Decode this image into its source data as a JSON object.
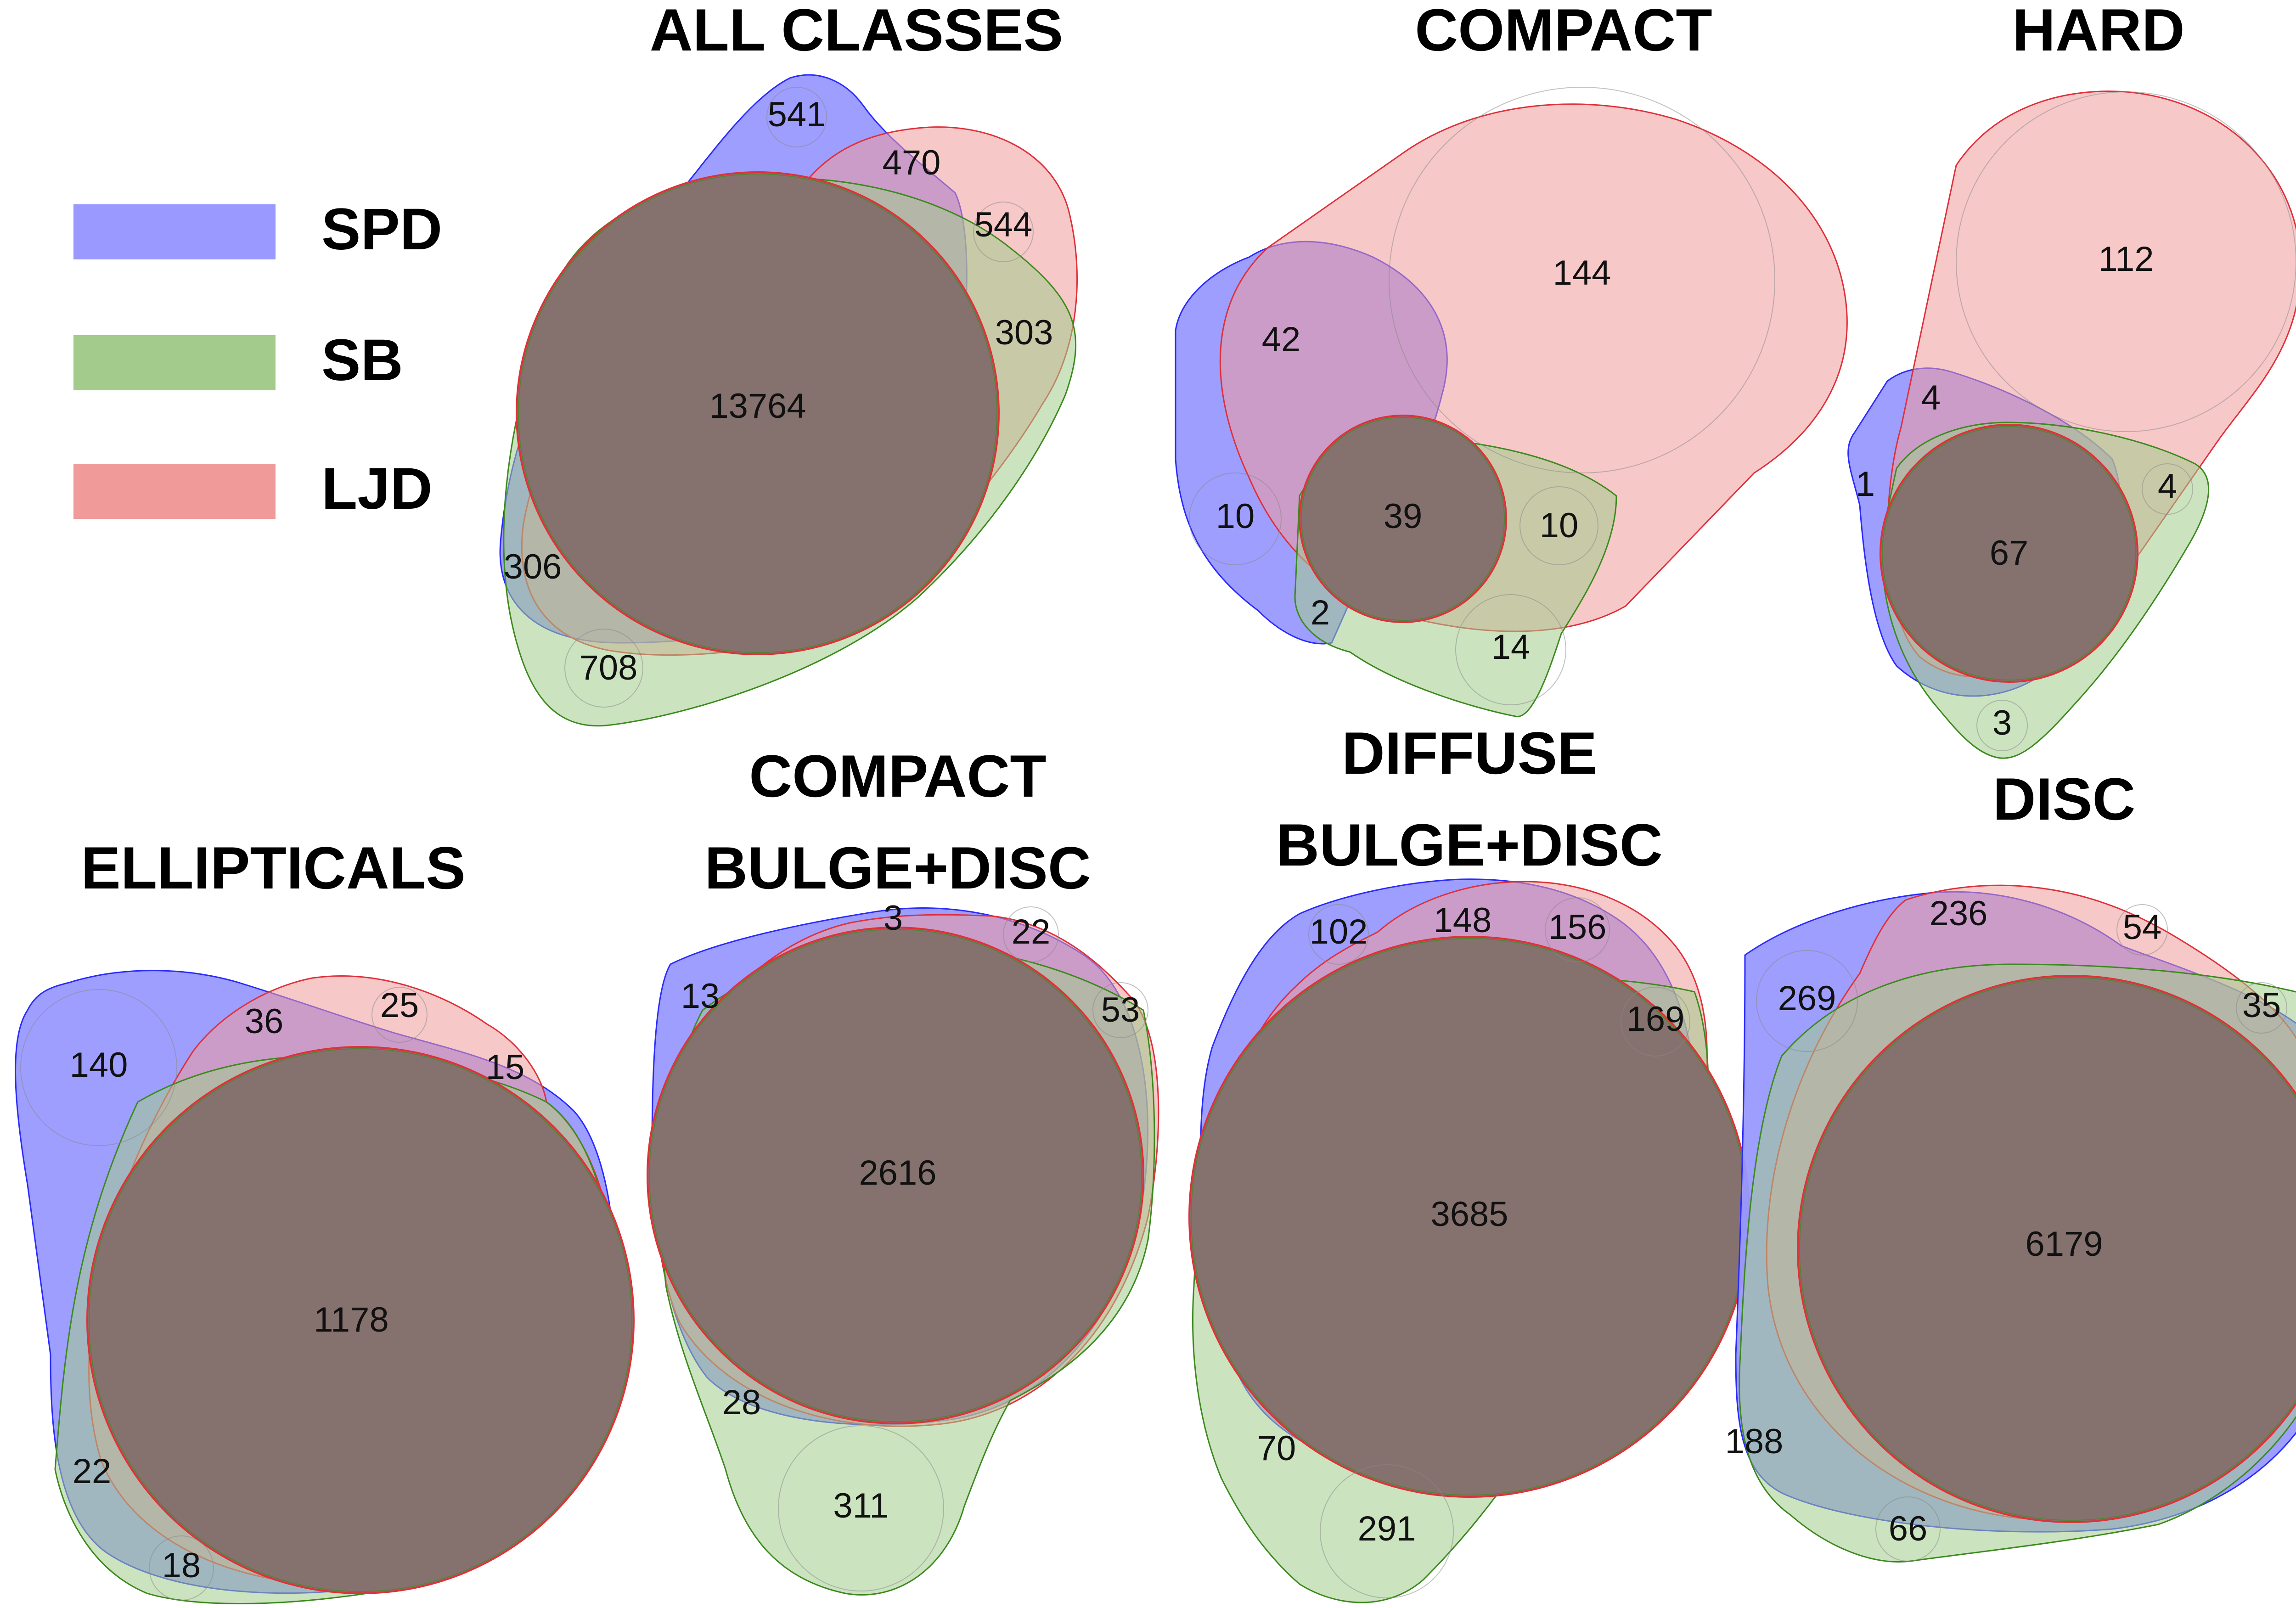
{
  "colors": {
    "SPD": "#9999ff",
    "SB": "#a3cc8c",
    "LJD": "#f09a9a",
    "SPD_stroke": "#2a2aff",
    "SB_stroke": "#3c8a1e",
    "LJD_stroke": "#e0303a",
    "SPD_LJD": "#b565b5",
    "SB_LJD": "#a39356",
    "SPD_SB": "#6683a0",
    "ALL": "#85726e"
  },
  "legend": [
    {
      "key": "SPD",
      "label": "SPD"
    },
    {
      "key": "SB",
      "label": "SB"
    },
    {
      "key": "LJD",
      "label": "LJD"
    }
  ],
  "panels": [
    {
      "id": "all-classes",
      "title_lines": [
        "ALL CLASSES"
      ],
      "values": {
        "spd_only": "541",
        "spd_ljd": "470",
        "ljd_only": "544",
        "sb_ljd": "303",
        "all": "13764",
        "spd_sb": "306",
        "sb_only": "708"
      }
    },
    {
      "id": "compact",
      "title_lines": [
        "COMPACT"
      ],
      "values": {
        "ljd_only": "144",
        "spd_ljd": "42",
        "spd_only": "10",
        "all": "39",
        "sb_ljd": "10",
        "spd_sb": "2",
        "sb_only": "14"
      }
    },
    {
      "id": "hard",
      "title_lines": [
        "HARD"
      ],
      "values": {
        "ljd_only": "112",
        "spd_ljd": "4",
        "spd_only": "1",
        "sb_ljd": "4",
        "all": "67",
        "sb_only": "3"
      }
    },
    {
      "id": "ellipticals",
      "title_lines": [
        "ELLIPTICALS"
      ],
      "values": {
        "spd_only": "140",
        "spd_ljd": "36",
        "ljd_only": "25",
        "sb_ljd": "15",
        "all": "1178",
        "spd_sb": "22",
        "sb_only": "18"
      }
    },
    {
      "id": "compact-bulge-disc",
      "title_lines": [
        "COMPACT",
        "BULGE+DISC"
      ],
      "values": {
        "spd_ljd": "3",
        "ljd_only": "22",
        "spd_only": "13",
        "sb_ljd": "53",
        "all": "2616",
        "spd_sb": "28",
        "sb_only": "311"
      }
    },
    {
      "id": "diffuse-bulge-disc",
      "title_lines": [
        "DIFFUSE",
        "BULGE+DISC"
      ],
      "values": {
        "spd_only": "102",
        "spd_ljd": "148",
        "ljd_only": "156",
        "sb_ljd": "169",
        "all": "3685",
        "spd_sb": "70",
        "sb_only": "291"
      }
    },
    {
      "id": "disc",
      "title_lines": [
        "DISC"
      ],
      "values": {
        "spd_ljd": "236",
        "ljd_only": "54",
        "spd_only": "269",
        "sb_ljd": "35",
        "all": "6179",
        "spd_sb": "188",
        "sb_only": "66"
      }
    }
  ]
}
